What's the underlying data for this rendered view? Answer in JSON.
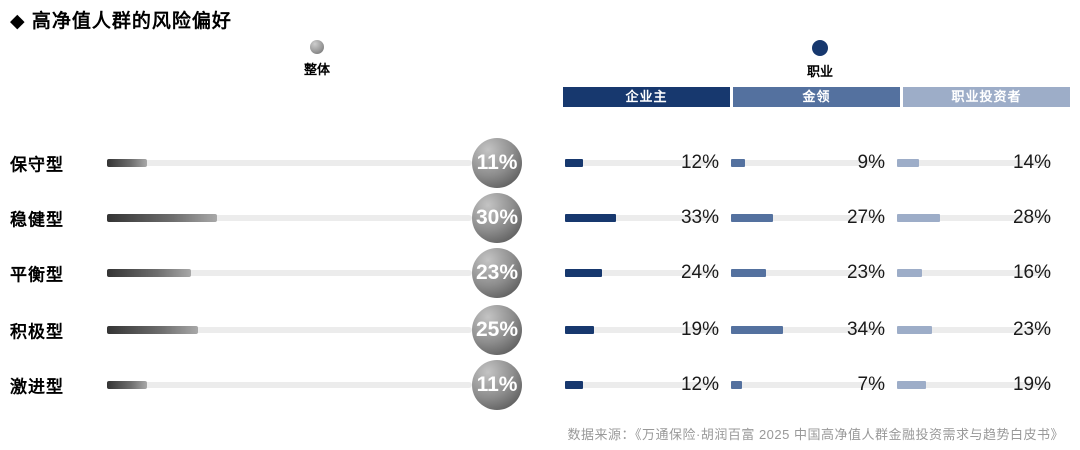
{
  "title": "◆ 高净值人群的风险偏好",
  "legend": {
    "overall_label": "整体",
    "occupation_label": "职业"
  },
  "columns": [
    {
      "label": "企业主",
      "color": "#17386e"
    },
    {
      "label": "金领",
      "color": "#54719f"
    },
    {
      "label": "职业投资者",
      "color": "#9dadc8"
    }
  ],
  "rows": [
    {
      "label": "保守型",
      "overall": {
        "pct": 11,
        "label": "11%"
      },
      "cells": [
        {
          "pct": 12,
          "label": "12%"
        },
        {
          "pct": 9,
          "label": "9%"
        },
        {
          "pct": 14,
          "label": "14%"
        }
      ]
    },
    {
      "label": "稳健型",
      "overall": {
        "pct": 30,
        "label": "30%"
      },
      "cells": [
        {
          "pct": 33,
          "label": "33%"
        },
        {
          "pct": 27,
          "label": "27%"
        },
        {
          "pct": 28,
          "label": "28%"
        }
      ]
    },
    {
      "label": "平衡型",
      "overall": {
        "pct": 23,
        "label": "23%"
      },
      "cells": [
        {
          "pct": 24,
          "label": "24%"
        },
        {
          "pct": 23,
          "label": "23%"
        },
        {
          "pct": 16,
          "label": "16%"
        }
      ]
    },
    {
      "label": "积极型",
      "overall": {
        "pct": 25,
        "label": "25%"
      },
      "cells": [
        {
          "pct": 19,
          "label": "19%"
        },
        {
          "pct": 34,
          "label": "34%"
        },
        {
          "pct": 23,
          "label": "23%"
        }
      ]
    },
    {
      "label": "激进型",
      "overall": {
        "pct": 11,
        "label": "11%"
      },
      "cells": [
        {
          "pct": 12,
          "label": "12%"
        },
        {
          "pct": 7,
          "label": "7%"
        },
        {
          "pct": 19,
          "label": "19%"
        }
      ]
    }
  ],
  "source": "数据来源：《万通保险·胡润百富 2025 中国高净值人群金融投资需求与趋势白皮书》",
  "colors": {
    "track": "#ececec",
    "overall_fill_dark": "#343434",
    "overall_fill_light": "#a8a8a8",
    "value_text": "#1a1a1a",
    "source_text": "#999999"
  },
  "chart_data": {
    "type": "bar",
    "orientation": "horizontal",
    "title": "高净值人群的风险偏好",
    "categories": [
      "保守型",
      "稳健型",
      "平衡型",
      "积极型",
      "激进型"
    ],
    "series": [
      {
        "name": "整体",
        "values": [
          11,
          30,
          23,
          25,
          11
        ]
      },
      {
        "name": "企业主",
        "values": [
          12,
          33,
          24,
          19,
          12
        ]
      },
      {
        "name": "金领",
        "values": [
          9,
          27,
          23,
          34,
          7
        ]
      },
      {
        "name": "职业投资者",
        "values": [
          14,
          28,
          16,
          23,
          19
        ]
      }
    ],
    "unit": "%",
    "xlim": [
      0,
      100
    ],
    "grid": false,
    "legend_position": "top",
    "annotation": "数据来源：《万通保险·胡润百富 2025 中国高净值人群金融投资需求与趋势白皮书》"
  }
}
